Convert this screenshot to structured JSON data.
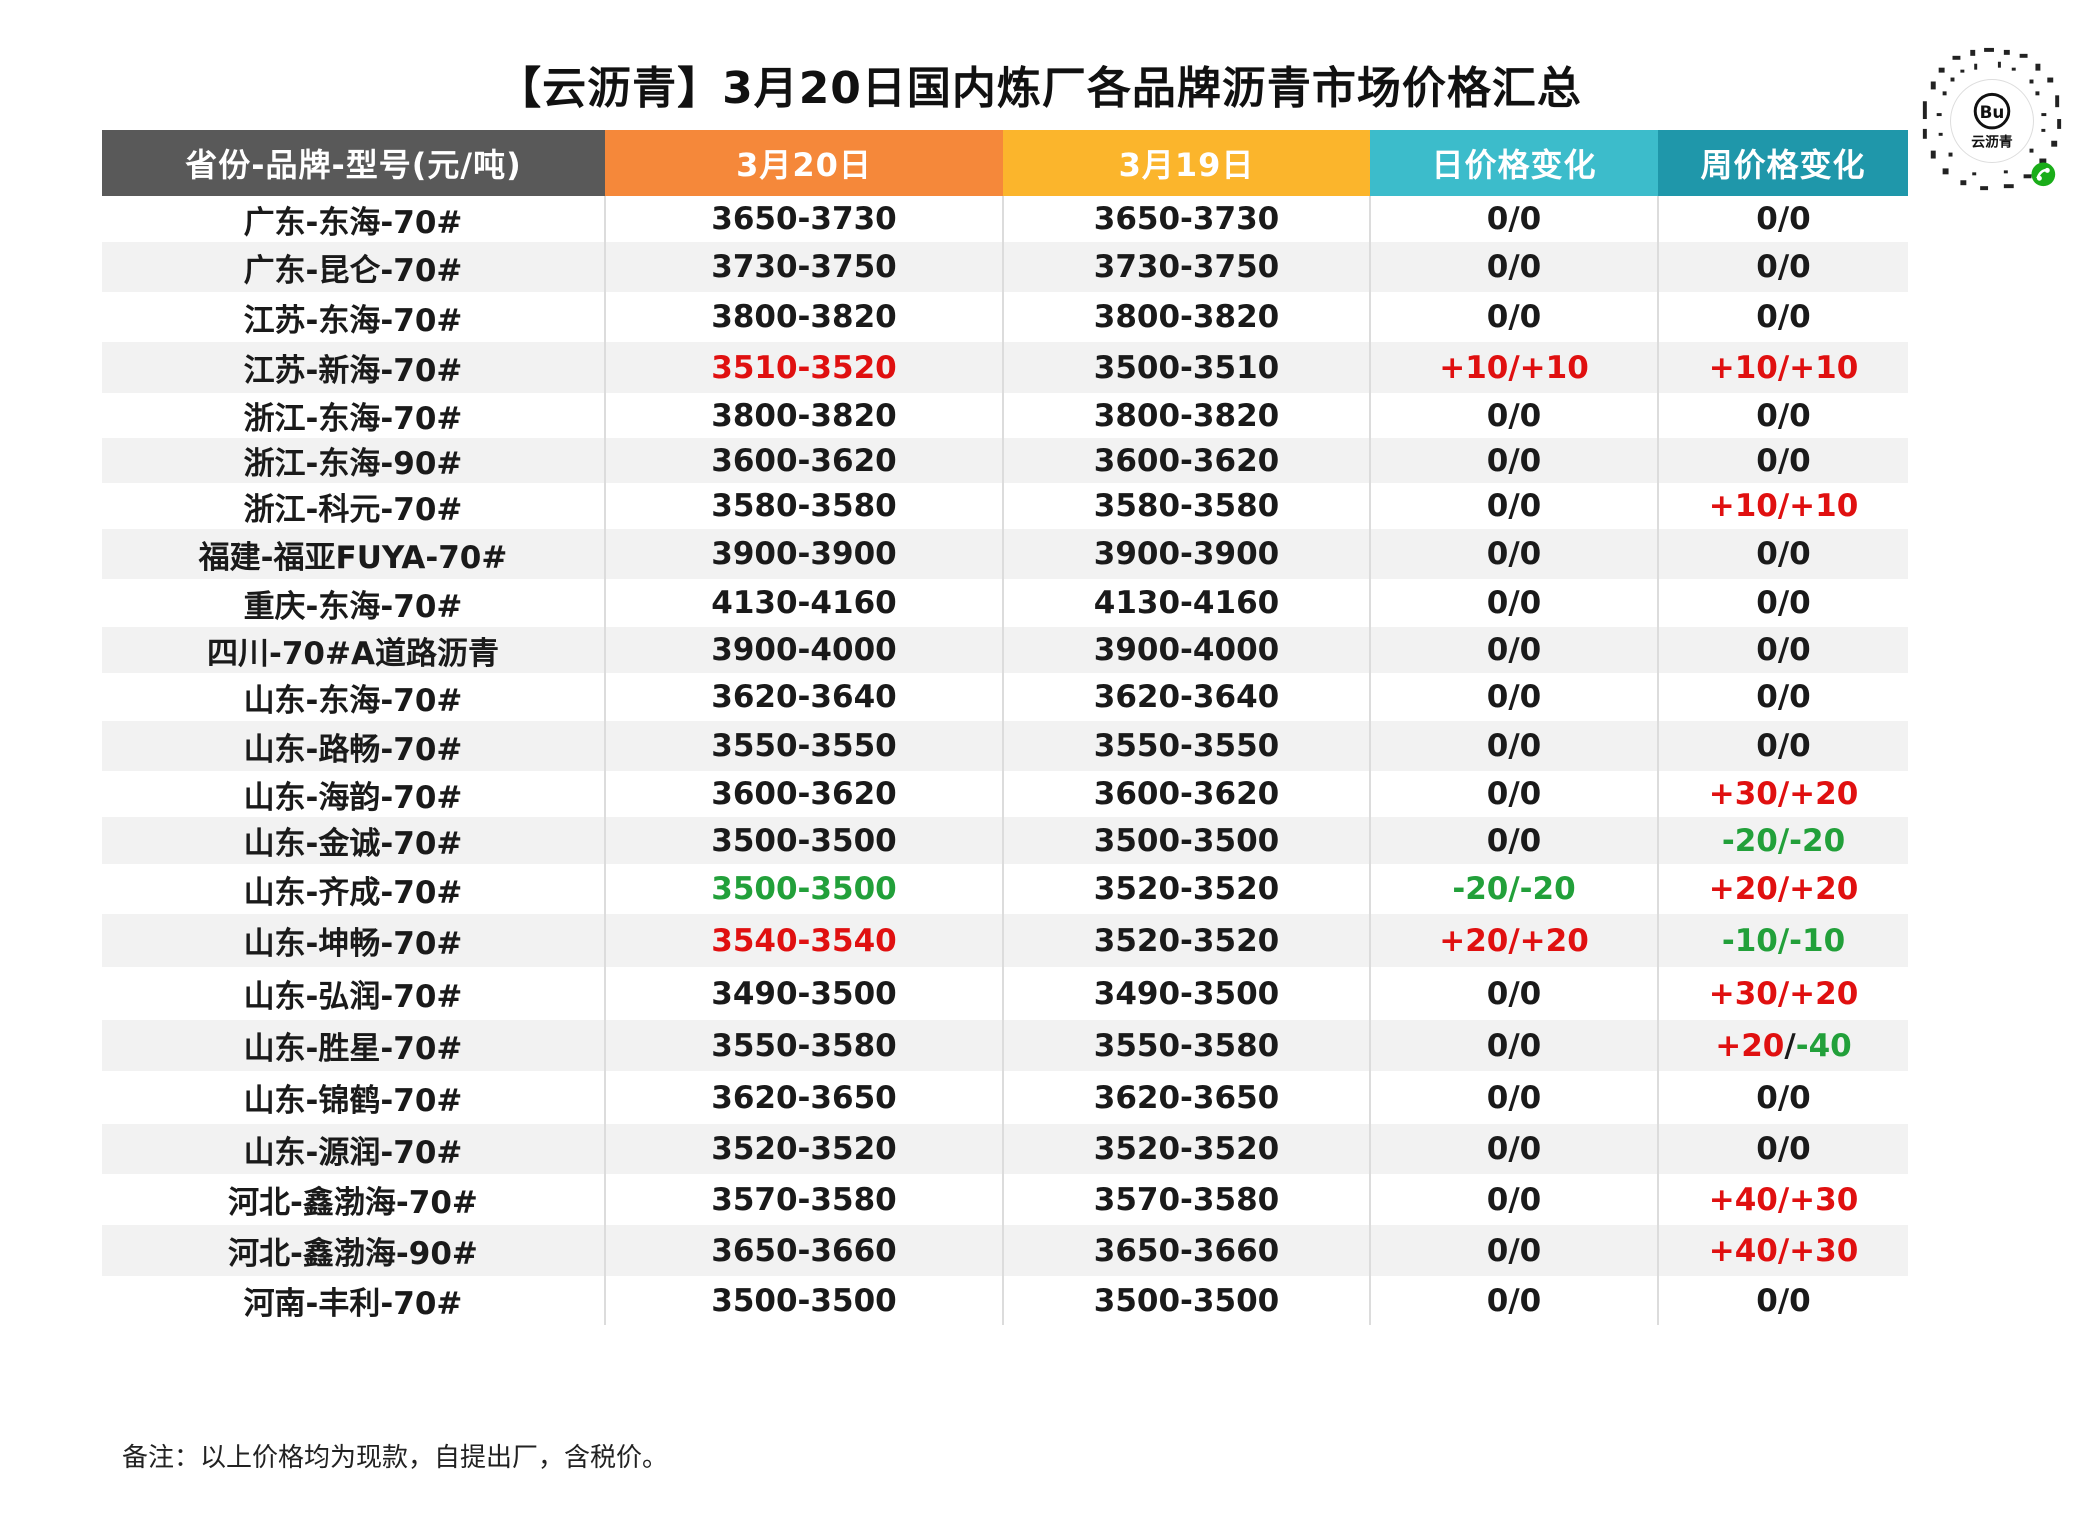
{
  "title": "【云沥青】3月20日国内炼厂各品牌沥青市场价格汇总",
  "logo": {
    "text": "云沥青",
    "badge": "Bu"
  },
  "table": {
    "headers": [
      "省份-品牌-型号(元/吨)",
      "3月20日",
      "3月19日",
      "日价格变化",
      "周价格变化"
    ],
    "header_colors": [
      "#595959",
      "#f5883a",
      "#fbb52c",
      "#3cbccb",
      "#1f97aa"
    ],
    "rows": [
      [
        "广东-东海-70#",
        "3650-3730",
        "3650-3730",
        "0/0",
        "0/0"
      ],
      [
        "广东-昆仑-70#",
        "3730-3750",
        "3730-3750",
        "0/0",
        "0/0"
      ],
      [
        "江苏-东海-70#",
        "3800-3820",
        "3800-3820",
        "0/0",
        "0/0"
      ],
      [
        "江苏-新海-70#",
        "3510-3520",
        "3500-3510",
        "+10/+10",
        "+10/+10"
      ],
      [
        "浙江-东海-70#",
        "3800-3820",
        "3800-3820",
        "0/0",
        "0/0"
      ],
      [
        "浙江-东海-90#",
        "3600-3620",
        "3600-3620",
        "0/0",
        "0/0"
      ],
      [
        "浙江-科元-70#",
        "3580-3580",
        "3580-3580",
        "0/0",
        "+10/+10"
      ],
      [
        "福建-福亚FUYA-70#",
        "3900-3900",
        "3900-3900",
        "0/0",
        "0/0"
      ],
      [
        "重庆-东海-70#",
        "4130-4160",
        "4130-4160",
        "0/0",
        "0/0"
      ],
      [
        "四川-70#A道路沥青",
        "3900-4000",
        "3900-4000",
        "0/0",
        "0/0"
      ],
      [
        "山东-东海-70#",
        "3620-3640",
        "3620-3640",
        "0/0",
        "0/0"
      ],
      [
        "山东-路畅-70#",
        "3550-3550",
        "3550-3550",
        "0/0",
        "0/0"
      ],
      [
        "山东-海韵-70#",
        "3600-3620",
        "3600-3620",
        "0/0",
        "+30/+20"
      ],
      [
        "山东-金诚-70#",
        "3500-3500",
        "3500-3500",
        "0/0",
        "-20/-20"
      ],
      [
        "山东-齐成-70#",
        "3500-3500",
        "3520-3520",
        "-20/-20",
        "+20/+20"
      ],
      [
        "山东-坤畅-70#",
        "3540-3540",
        "3520-3520",
        "+20/+20",
        "-10/-10"
      ],
      [
        "山东-弘润-70#",
        "3490-3500",
        "3490-3500",
        "0/0",
        "+30/+20"
      ],
      [
        "山东-胜星-70#",
        "3550-3580",
        "3550-3580",
        "0/0",
        "+20/-40"
      ],
      [
        "山东-锦鹤-70#",
        "3620-3650",
        "3620-3650",
        "0/0",
        "0/0"
      ],
      [
        "山东-源润-70#",
        "3520-3520",
        "3520-3520",
        "0/0",
        "0/0"
      ],
      [
        "河北-鑫渤海-70#",
        "3570-3580",
        "3570-3580",
        "0/0",
        "+40/+30"
      ],
      [
        "河北-鑫渤海-90#",
        "3650-3660",
        "3650-3660",
        "0/0",
        "+40/+30"
      ],
      [
        "河南-丰利-70#",
        "3500-3500",
        "3500-3500",
        "0/0",
        "0/0"
      ]
    ]
  },
  "colors": {
    "up": "#e01010",
    "down": "#22a03a"
  },
  "note": "备注：以上价格均为现款，自提出厂，含税价。"
}
